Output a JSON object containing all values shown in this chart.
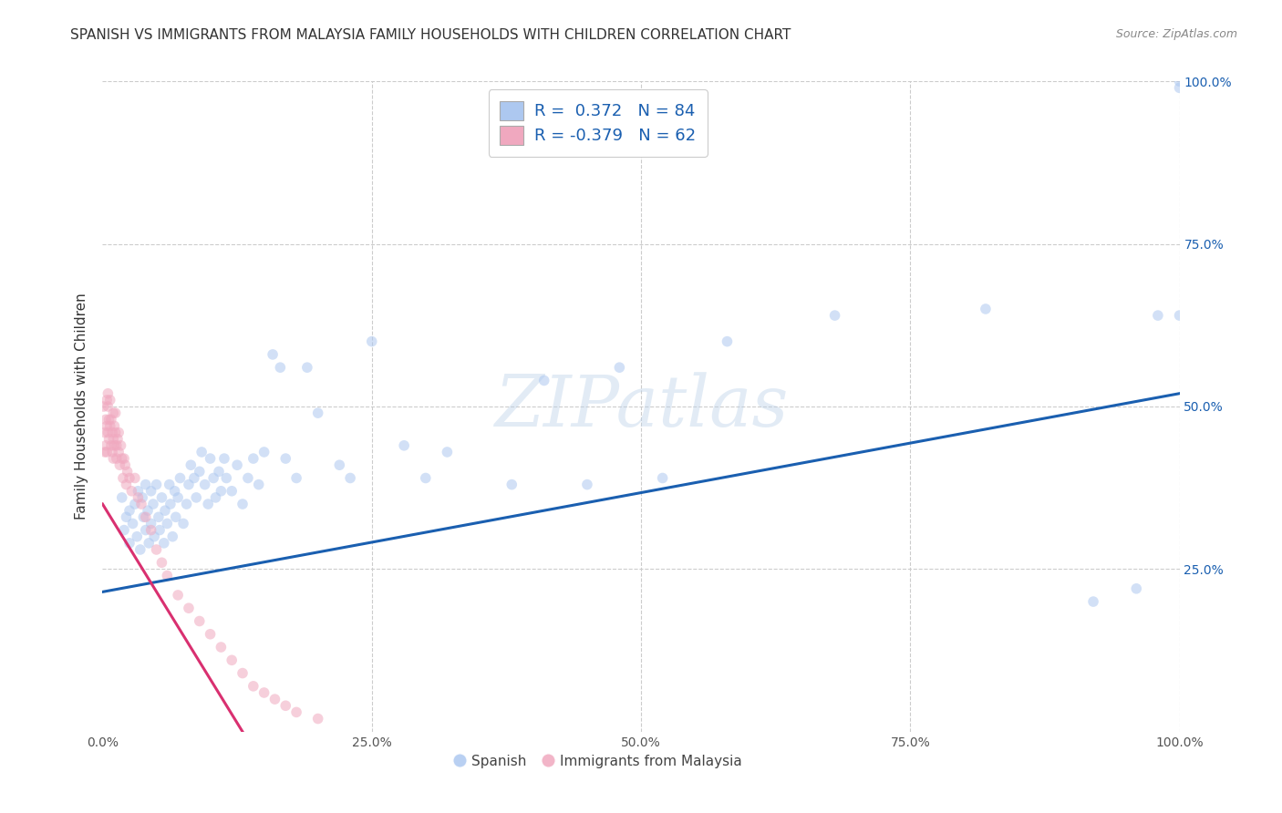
{
  "title": "SPANISH VS IMMIGRANTS FROM MALAYSIA FAMILY HOUSEHOLDS WITH CHILDREN CORRELATION CHART",
  "source": "Source: ZipAtlas.com",
  "ylabel": "Family Households with Children",
  "watermark": "ZIPatlas",
  "blue_R": 0.372,
  "blue_N": 84,
  "pink_R": -0.379,
  "pink_N": 62,
  "blue_color": "#adc8f0",
  "pink_color": "#f0a8bf",
  "blue_line_color": "#1a5fb0",
  "pink_line_color": "#d93070",
  "legend_text_color": "#1a5fb0",
  "right_tick_color": "#1a5fb0",
  "xlim": [
    0,
    1
  ],
  "ylim": [
    0,
    1
  ],
  "xticks": [
    0,
    0.25,
    0.5,
    0.75,
    1.0
  ],
  "yticks": [
    0,
    0.25,
    0.5,
    0.75,
    1.0
  ],
  "xticklabels": [
    "0.0%",
    "25.0%",
    "50.0%",
    "75.0%",
    "100.0%"
  ],
  "left_yticklabels": [
    "",
    "",
    "",
    "",
    ""
  ],
  "right_yticklabels": [
    "",
    "25.0%",
    "50.0%",
    "75.0%",
    "100.0%"
  ],
  "blue_x": [
    0.018,
    0.02,
    0.022,
    0.025,
    0.025,
    0.028,
    0.03,
    0.032,
    0.033,
    0.035,
    0.037,
    0.038,
    0.04,
    0.04,
    0.042,
    0.043,
    0.045,
    0.045,
    0.047,
    0.048,
    0.05,
    0.052,
    0.053,
    0.055,
    0.057,
    0.058,
    0.06,
    0.062,
    0.063,
    0.065,
    0.067,
    0.068,
    0.07,
    0.072,
    0.075,
    0.078,
    0.08,
    0.082,
    0.085,
    0.087,
    0.09,
    0.092,
    0.095,
    0.098,
    0.1,
    0.103,
    0.105,
    0.108,
    0.11,
    0.113,
    0.115,
    0.12,
    0.125,
    0.13,
    0.135,
    0.14,
    0.145,
    0.15,
    0.158,
    0.165,
    0.17,
    0.18,
    0.19,
    0.2,
    0.22,
    0.23,
    0.25,
    0.28,
    0.3,
    0.32,
    0.38,
    0.41,
    0.45,
    0.48,
    0.52,
    0.58,
    0.68,
    0.82,
    0.92,
    0.96,
    0.98,
    1.0,
    1.0,
    1.0
  ],
  "blue_y": [
    0.36,
    0.31,
    0.33,
    0.29,
    0.34,
    0.32,
    0.35,
    0.3,
    0.37,
    0.28,
    0.36,
    0.33,
    0.31,
    0.38,
    0.34,
    0.29,
    0.37,
    0.32,
    0.35,
    0.3,
    0.38,
    0.33,
    0.31,
    0.36,
    0.29,
    0.34,
    0.32,
    0.38,
    0.35,
    0.3,
    0.37,
    0.33,
    0.36,
    0.39,
    0.32,
    0.35,
    0.38,
    0.41,
    0.39,
    0.36,
    0.4,
    0.43,
    0.38,
    0.35,
    0.42,
    0.39,
    0.36,
    0.4,
    0.37,
    0.42,
    0.39,
    0.37,
    0.41,
    0.35,
    0.39,
    0.42,
    0.38,
    0.43,
    0.58,
    0.56,
    0.42,
    0.39,
    0.56,
    0.49,
    0.41,
    0.39,
    0.6,
    0.44,
    0.39,
    0.43,
    0.38,
    0.54,
    0.38,
    0.56,
    0.39,
    0.6,
    0.64,
    0.65,
    0.2,
    0.22,
    0.64,
    1.0,
    0.64,
    0.99
  ],
  "pink_x": [
    0.001,
    0.002,
    0.002,
    0.003,
    0.003,
    0.004,
    0.004,
    0.004,
    0.005,
    0.005,
    0.005,
    0.006,
    0.006,
    0.007,
    0.007,
    0.008,
    0.008,
    0.009,
    0.009,
    0.01,
    0.01,
    0.01,
    0.011,
    0.011,
    0.012,
    0.012,
    0.013,
    0.013,
    0.014,
    0.015,
    0.015,
    0.016,
    0.017,
    0.018,
    0.019,
    0.02,
    0.021,
    0.022,
    0.023,
    0.025,
    0.027,
    0.03,
    0.033,
    0.036,
    0.04,
    0.045,
    0.05,
    0.055,
    0.06,
    0.07,
    0.08,
    0.09,
    0.1,
    0.11,
    0.12,
    0.13,
    0.14,
    0.15,
    0.16,
    0.17,
    0.18,
    0.2
  ],
  "pink_y": [
    0.5,
    0.46,
    0.43,
    0.48,
    0.44,
    0.51,
    0.47,
    0.43,
    0.46,
    0.5,
    0.52,
    0.48,
    0.45,
    0.47,
    0.51,
    0.44,
    0.48,
    0.46,
    0.43,
    0.49,
    0.45,
    0.42,
    0.47,
    0.44,
    0.46,
    0.49,
    0.44,
    0.42,
    0.45,
    0.46,
    0.43,
    0.41,
    0.44,
    0.42,
    0.39,
    0.42,
    0.41,
    0.38,
    0.4,
    0.39,
    0.37,
    0.39,
    0.36,
    0.35,
    0.33,
    0.31,
    0.28,
    0.26,
    0.24,
    0.21,
    0.19,
    0.17,
    0.15,
    0.13,
    0.11,
    0.09,
    0.07,
    0.06,
    0.05,
    0.04,
    0.03,
    0.02
  ],
  "blue_line_x0": 0.0,
  "blue_line_y0": 0.215,
  "blue_line_x1": 1.0,
  "blue_line_y1": 0.52,
  "pink_line_x0": 0.0,
  "pink_line_y0": 0.35,
  "pink_line_x1": 0.13,
  "pink_line_y1": 0.0,
  "background_color": "#ffffff",
  "grid_color": "#cccccc",
  "title_fontsize": 11,
  "axis_label_fontsize": 11,
  "tick_fontsize": 10,
  "marker_size": 70,
  "marker_alpha": 0.55,
  "legend_fontsize": 13
}
